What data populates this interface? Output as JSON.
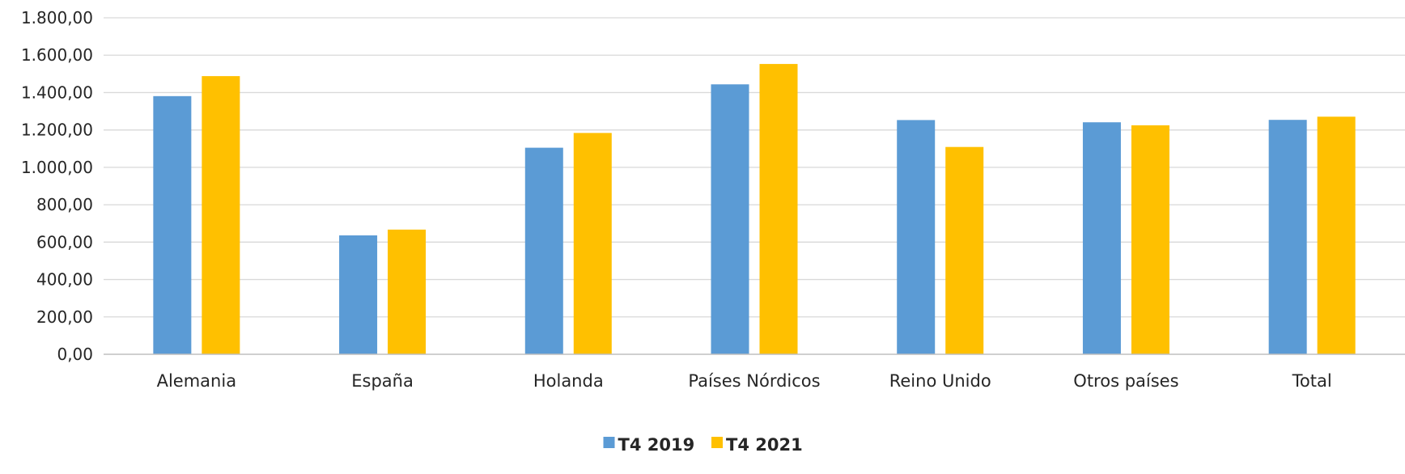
{
  "chart_data": {
    "type": "bar",
    "categories": [
      "Alemania",
      "España",
      "Holanda",
      "Países Nórdicos",
      "Reino Unido",
      "Otros países",
      "Total"
    ],
    "series": [
      {
        "name": "T4 2019",
        "color": "#5b9bd5",
        "values": [
          1381,
          636,
          1105,
          1444,
          1253,
          1241,
          1254
        ]
      },
      {
        "name": "T4 2021",
        "color": "#ffc000",
        "values": [
          1488,
          667,
          1184,
          1553,
          1109,
          1225,
          1271
        ]
      }
    ],
    "ylim": [
      0,
      1800
    ],
    "ytick_values": [
      0,
      200,
      400,
      600,
      800,
      1000,
      1200,
      1400,
      1600,
      1800
    ],
    "ytick_labels": [
      "0,00",
      "200,00",
      "400,00",
      "600,00",
      "800,00",
      "1.000,00",
      "1.200,00",
      "1.400,00",
      "1.600,00",
      "1.800,00"
    ],
    "grid": true,
    "legend_position": "bottom-center",
    "title": "",
    "xlabel": "",
    "ylabel": ""
  }
}
